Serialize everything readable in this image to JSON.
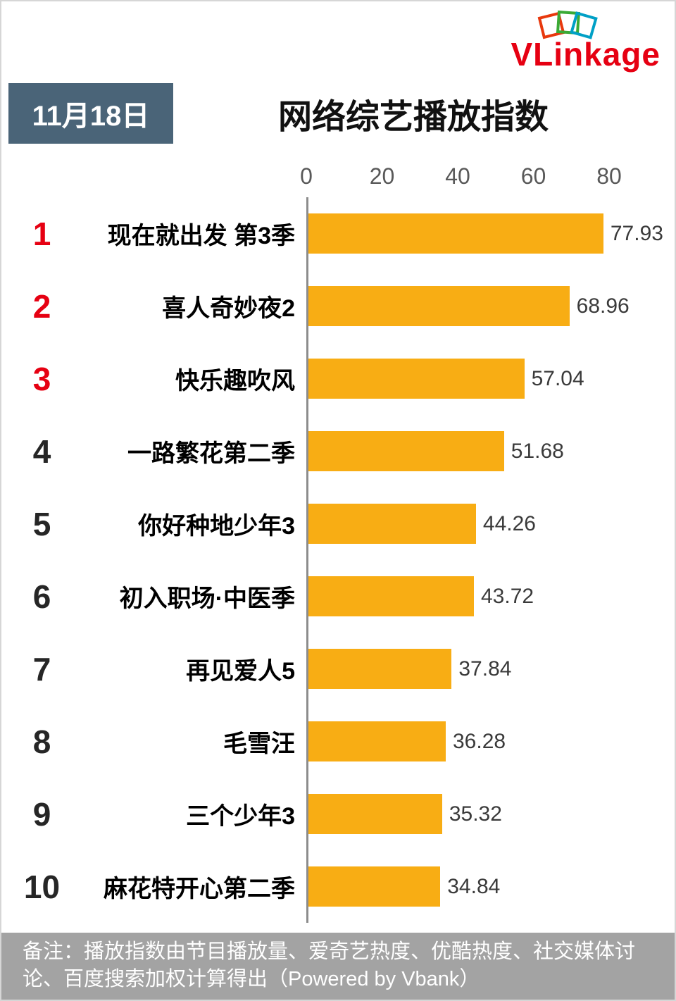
{
  "header": {
    "logo_text": "VLinkage",
    "date": "11月18日",
    "title": "网络综艺播放指数"
  },
  "chart_data": {
    "type": "bar",
    "orientation": "horizontal",
    "title": "网络综艺播放指数",
    "date": "11月18日",
    "categories": [
      "现在就出发 第3季",
      "喜人奇妙夜2",
      "快乐趣吹风",
      "一路繁花第二季",
      "你好种地少年3",
      "初入职场·中医季",
      "再见爱人5",
      "毛雪汪",
      "三个少年3",
      "麻花特开心第二季"
    ],
    "values": [
      77.93,
      68.96,
      57.04,
      51.68,
      44.26,
      43.72,
      37.84,
      36.28,
      35.32,
      34.84
    ],
    "ranks": [
      1,
      2,
      3,
      4,
      5,
      6,
      7,
      8,
      9,
      10
    ],
    "rank_highlight_count": 3,
    "xlim": [
      0,
      80
    ],
    "ticks": [
      0,
      20,
      40,
      60,
      80
    ],
    "grid": false,
    "legend": "none"
  },
  "colors": {
    "bar": "#F8AD14",
    "rank_top": "#E60012",
    "logo": "#E60012",
    "date_badge_bg": "#4A6478",
    "footer_bg": "#A3A3A3"
  },
  "footer": {
    "note": "备注：播放指数由节目播放量、爱奇艺热度、优酷热度、社交媒体讨论、百度搜索加权计算得出（Powered by Vbank）"
  }
}
